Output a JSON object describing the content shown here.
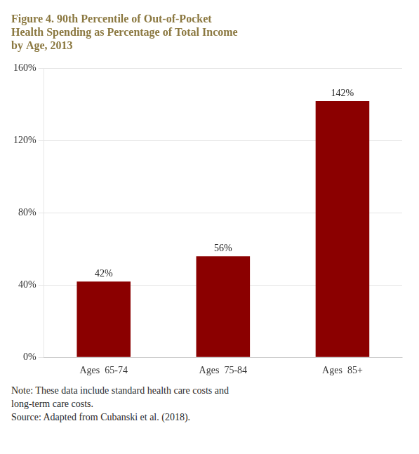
{
  "chart_data": {
    "type": "bar",
    "title": [
      "Figure 4. 90th Percentile of Out-of-Pocket",
      "Health Spending as Percentage of Total Income",
      "by Age, 2013"
    ],
    "categories": [
      "Ages  65-74",
      "Ages  75-84",
      "Ages  85+"
    ],
    "values": [
      42,
      56,
      142
    ],
    "value_labels": [
      "42%",
      "56%",
      "142%"
    ],
    "data_labels": true,
    "color": "#8B0000",
    "ylim": [
      0,
      160
    ],
    "yticks": [
      {
        "value": 0,
        "label": "0%"
      },
      {
        "value": 40,
        "label": "40%"
      },
      {
        "value": 80,
        "label": "80%"
      },
      {
        "value": 120,
        "label": "120%"
      },
      {
        "value": 160,
        "label": "160%"
      }
    ],
    "grid": true,
    "annotations": [
      "Note: These data include standard health care costs and",
      "long-term care costs.",
      "Source: Adapted from Cubanski et al. (2018)."
    ]
  }
}
